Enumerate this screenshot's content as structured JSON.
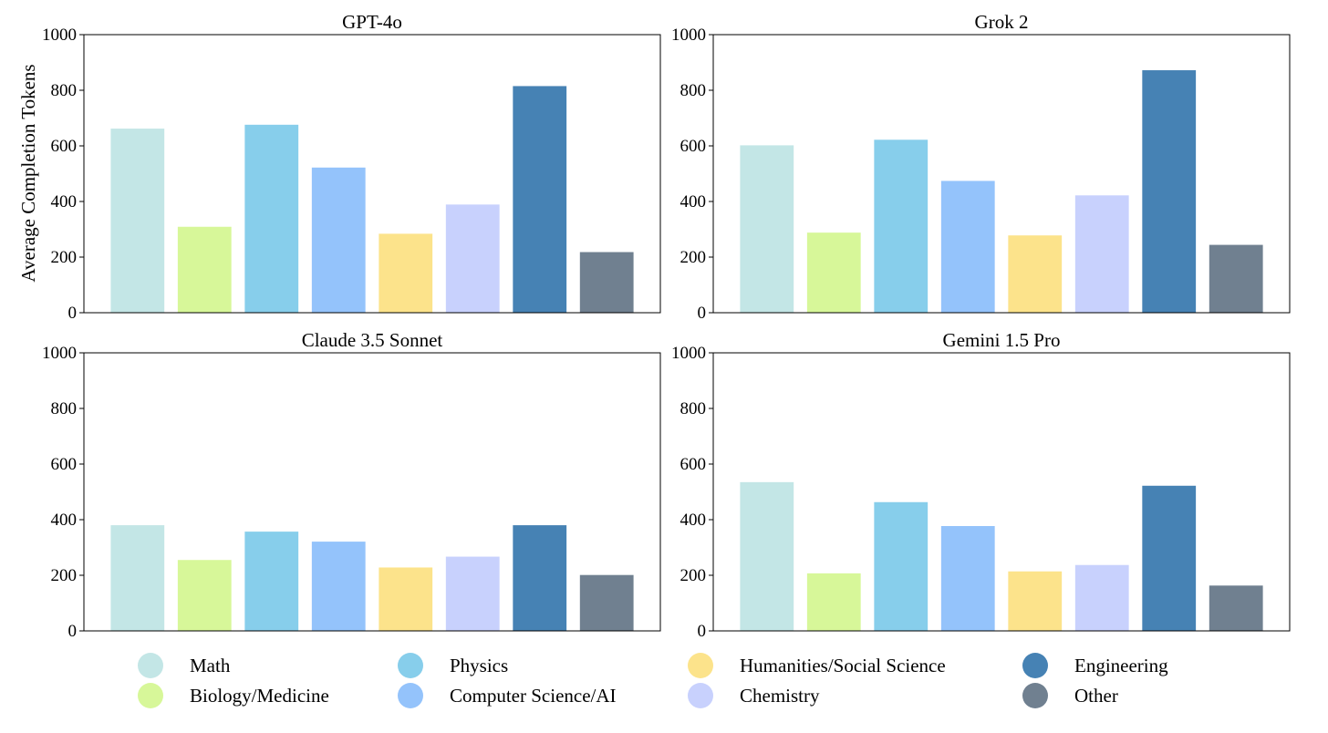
{
  "ylabel": "Average Completion Tokens",
  "legend": [
    {
      "name": "Math",
      "color": "#c3e6e6"
    },
    {
      "name": "Biology/Medicine",
      "color": "#d7f799"
    },
    {
      "name": "Physics",
      "color": "#87ceeb"
    },
    {
      "name": "Computer Science/AI",
      "color": "#94c3fb"
    },
    {
      "name": "Humanities/Social Science",
      "color": "#fce38b"
    },
    {
      "name": "Chemistry",
      "color": "#c8d1fd"
    },
    {
      "name": "Engineering",
      "color": "#4682b4"
    },
    {
      "name": "Other",
      "color": "#708090"
    }
  ],
  "chart_data": [
    {
      "type": "bar",
      "title": "GPT-4o",
      "categories": [
        "Math",
        "Biology/Medicine",
        "Physics",
        "Computer Science/AI",
        "Humanities/Social Science",
        "Chemistry",
        "Engineering",
        "Other"
      ],
      "values": [
        662,
        309,
        676,
        522,
        284,
        389,
        815,
        218
      ],
      "ylim": [
        0,
        1000
      ],
      "yticks": [
        "0",
        "200",
        "400",
        "600",
        "800",
        "1000"
      ]
    },
    {
      "type": "bar",
      "title": "Grok 2",
      "categories": [
        "Math",
        "Biology/Medicine",
        "Physics",
        "Computer Science/AI",
        "Humanities/Social Science",
        "Chemistry",
        "Engineering",
        "Other"
      ],
      "values": [
        602,
        288,
        622,
        474,
        278,
        422,
        872,
        244
      ],
      "ylim": [
        0,
        1000
      ],
      "yticks": [
        "0",
        "200",
        "400",
        "600",
        "800",
        "1000"
      ]
    },
    {
      "type": "bar",
      "title": "Claude 3.5 Sonnet",
      "categories": [
        "Math",
        "Biology/Medicine",
        "Physics",
        "Computer Science/AI",
        "Humanities/Social Science",
        "Chemistry",
        "Engineering",
        "Other"
      ],
      "values": [
        380,
        255,
        357,
        321,
        228,
        267,
        380,
        201
      ],
      "ylim": [
        0,
        1000
      ],
      "yticks": [
        "0",
        "200",
        "400",
        "600",
        "800",
        "1000"
      ]
    },
    {
      "type": "bar",
      "title": "Gemini 1.5 Pro",
      "categories": [
        "Math",
        "Biology/Medicine",
        "Physics",
        "Computer Science/AI",
        "Humanities/Social Science",
        "Chemistry",
        "Engineering",
        "Other"
      ],
      "values": [
        535,
        207,
        463,
        377,
        214,
        237,
        522,
        163
      ],
      "ylim": [
        0,
        1000
      ],
      "yticks": [
        "0",
        "200",
        "400",
        "600",
        "800",
        "1000"
      ]
    }
  ]
}
